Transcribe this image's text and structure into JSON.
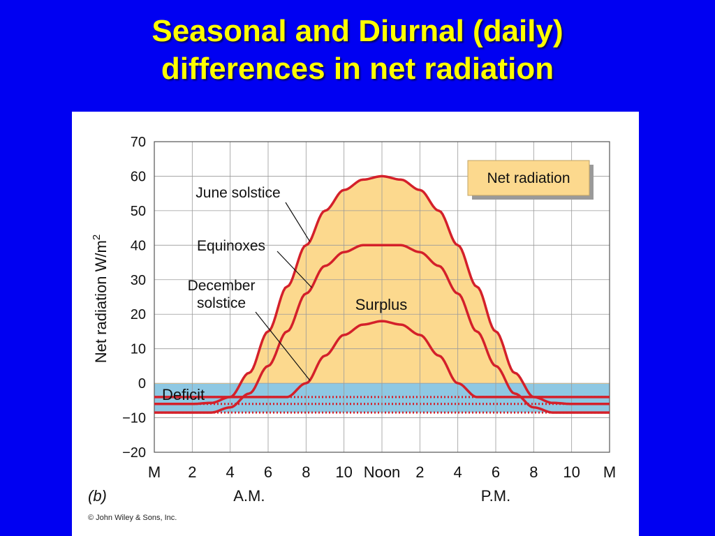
{
  "slide": {
    "title_line1": "Seasonal and Diurnal (daily)",
    "title_line2": "differences in net radiation"
  },
  "colors": {
    "background": "#0000f2",
    "title": "#ffff00",
    "surplus_fill": "#fcd98e",
    "deficit_fill": "#8ec8e3",
    "curve": "#d4202a"
  },
  "chart_data": {
    "type": "line",
    "ylabel": "Net radiation W/m",
    "ylabel_superscript": "2",
    "ylim": [
      -20,
      70
    ],
    "yticks": [
      "70",
      "60",
      "50",
      "40",
      "30",
      "20",
      "10",
      "0",
      "−10",
      "−20"
    ],
    "yticks_values": [
      70,
      60,
      50,
      40,
      30,
      20,
      10,
      0,
      -10,
      -20
    ],
    "xlim": [
      0,
      24
    ],
    "xticks": [
      "M",
      "2",
      "4",
      "6",
      "8",
      "10",
      "Noon",
      "2",
      "4",
      "6",
      "8",
      "10",
      "M"
    ],
    "xticks_hours": [
      0,
      2,
      4,
      6,
      8,
      10,
      12,
      14,
      16,
      18,
      20,
      22,
      24
    ],
    "x_period_labels": [
      "A.M.",
      "P.M."
    ],
    "x_period_hours": [
      5,
      18
    ],
    "series": [
      {
        "name": "June solstice",
        "x": [
          0,
          2,
          3,
          4,
          5,
          6,
          7,
          8,
          9,
          10,
          11,
          12,
          13,
          14,
          15,
          16,
          17,
          18,
          19,
          20,
          21,
          22,
          24
        ],
        "values": [
          -6,
          -6,
          -5.7,
          -4,
          3,
          15,
          28,
          40,
          50,
          56,
          59,
          60,
          59,
          56,
          50,
          40,
          28,
          15,
          3,
          -4,
          -5.7,
          -6,
          -6
        ]
      },
      {
        "name": "Equinoxes",
        "x": [
          0,
          2,
          3,
          4,
          5,
          6,
          7,
          8,
          9,
          10,
          11,
          12,
          13,
          14,
          15,
          16,
          17,
          18,
          19,
          20,
          21,
          22,
          24
        ],
        "values": [
          -8.5,
          -8.5,
          -8.5,
          -7,
          -3,
          5,
          15,
          26,
          34,
          38,
          40,
          40,
          40,
          38,
          34,
          26,
          15,
          5,
          -3,
          -7,
          -8.5,
          -8.5,
          -8.5
        ]
      },
      {
        "name": "December solstice",
        "x": [
          0,
          2,
          3,
          4,
          5,
          6,
          7,
          8,
          9,
          10,
          11,
          12,
          13,
          14,
          15,
          16,
          17,
          18,
          19,
          20,
          21,
          22,
          24
        ],
        "values": [
          -4,
          -4,
          -4,
          -4,
          -4,
          -4,
          -4,
          0,
          8,
          14,
          17,
          18,
          17,
          14,
          8,
          0,
          -4,
          -4,
          -4,
          -4,
          -4,
          -4,
          -4
        ]
      }
    ],
    "annotations": {
      "legend_box": "Net radiation",
      "surplus": "Surplus",
      "deficit": "Deficit",
      "panel_label": "(b)",
      "copyright": "© John Wiley & Sons, Inc."
    },
    "grid": true,
    "legend_position": "top-right"
  }
}
